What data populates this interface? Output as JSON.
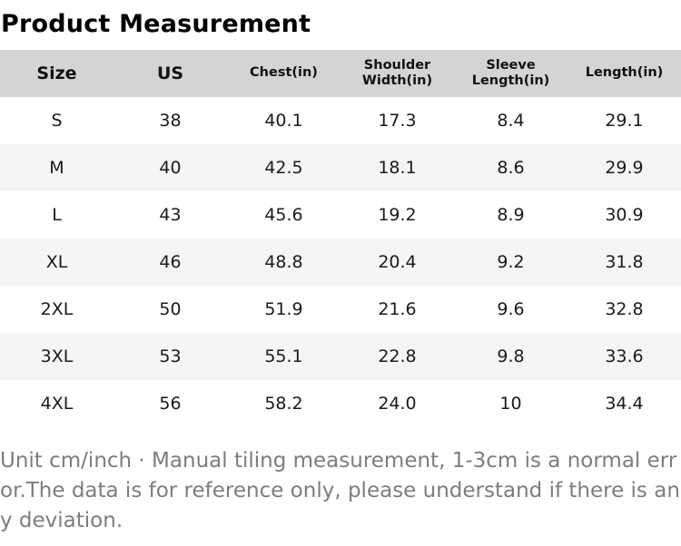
{
  "page": {
    "title": "Product Measurement"
  },
  "table": {
    "columns": [
      "Size",
      "US",
      "Chest(in)",
      "Shoulder Width(in)",
      "Sleeve Length(in)",
      "Length(in)"
    ],
    "rows": [
      [
        "S",
        "38",
        "40.1",
        "17.3",
        "8.4",
        "29.1"
      ],
      [
        "M",
        "40",
        "42.5",
        "18.1",
        "8.6",
        "29.9"
      ],
      [
        "L",
        "43",
        "45.6",
        "19.2",
        "8.9",
        "30.9"
      ],
      [
        "XL",
        "46",
        "48.8",
        "20.4",
        "9.2",
        "31.8"
      ],
      [
        "2XL",
        "50",
        "51.9",
        "21.6",
        "9.6",
        "32.8"
      ],
      [
        "3XL",
        "53",
        "55.1",
        "22.8",
        "9.8",
        "33.6"
      ],
      [
        "4XL",
        "56",
        "58.2",
        "24.0",
        "10",
        "34.4"
      ]
    ]
  },
  "footer": {
    "note": "Unit cm/inch · Manual tiling measurement, 1-3cm is a normal error.The data is for reference only, please understand if there is any deviation."
  },
  "colors": {
    "title_text": "#000000",
    "header_bg": "#d4d4d4",
    "row_bg": "#ffffff",
    "row_alt_bg": "#f5f5f5",
    "body_text": "#1a1a1a",
    "note_text": "#7d7d7d"
  }
}
